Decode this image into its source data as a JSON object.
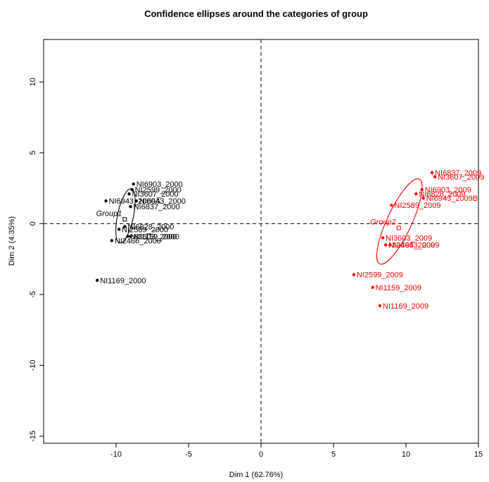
{
  "chart_data": {
    "type": "scatter",
    "title": "Confidence ellipses around the categories of group",
    "xlabel": "Dim 1 (62.76%)",
    "ylabel": "Dim 2 (4.35%)",
    "xlim": [
      -15,
      15
    ],
    "ylim": [
      -15.5,
      13
    ],
    "xticks": [
      -10,
      -5,
      0,
      5,
      10,
      15
    ],
    "yticks": [
      -15,
      -10,
      -5,
      0,
      5,
      10
    ],
    "reference_lines": {
      "x": 0,
      "y": 0,
      "style": "dashed"
    },
    "series": [
      {
        "name": "Group1",
        "color": "#000000",
        "points": [
          {
            "label": "NI6903_2000",
            "x": -8.8,
            "y": 2.8
          },
          {
            "label": "NI2599_2000",
            "x": -8.9,
            "y": 2.4
          },
          {
            "label": "NI3607_2000",
            "x": -9.1,
            "y": 2.1
          },
          {
            "label": "NI6943_2000",
            "x": -8.6,
            "y": 1.6
          },
          {
            "label": "NI6943_2000A",
            "x": -10.7,
            "y": 1.6
          },
          {
            "label": "NI6837_2000",
            "x": -9.0,
            "y": 1.2
          },
          {
            "label": "NI6828_2000",
            "x": -9.4,
            "y": -0.2
          },
          {
            "label": "NI2589_2000",
            "x": -9.8,
            "y": -0.4
          },
          {
            "label": "NI3603_2000",
            "x": -9.2,
            "y": -0.9
          },
          {
            "label": "NI1159_2000",
            "x": -9.0,
            "y": -0.9
          },
          {
            "label": "NI2466_2000",
            "x": -10.3,
            "y": -1.2
          },
          {
            "label": "NI1169_2000",
            "x": -11.3,
            "y": -4.0
          }
        ],
        "centroid": {
          "label": "Group1",
          "x": -9.4,
          "y": 0.3
        },
        "ellipse": {
          "cx": -9.35,
          "cy": 0.55,
          "rx": 0.55,
          "ry": 1.95,
          "angle_deg": 12
        }
      },
      {
        "name": "Group2",
        "color": "#ff0000",
        "points": [
          {
            "label": "NI6837_2009",
            "x": 11.8,
            "y": 3.6
          },
          {
            "label": "NI3607_2009",
            "x": 12.0,
            "y": 3.3
          },
          {
            "label": "NI6903_2009",
            "x": 11.1,
            "y": 2.4
          },
          {
            "label": "NI6828_2009",
            "x": 10.7,
            "y": 2.1
          },
          {
            "label": "NI6943_2009B",
            "x": 11.2,
            "y": 1.8
          },
          {
            "label": "NI2589_2009",
            "x": 9.0,
            "y": 1.3
          },
          {
            "label": "NI3603_2009",
            "x": 8.4,
            "y": -1.0
          },
          {
            "label": "NI6943_2009",
            "x": 8.9,
            "y": -1.5
          },
          {
            "label": "NI2466_2009",
            "x": 8.6,
            "y": -1.5
          },
          {
            "label": "NI2599_2009",
            "x": 6.4,
            "y": -3.6
          },
          {
            "label": "NI1159_2009",
            "x": 7.7,
            "y": -4.5
          },
          {
            "label": "NI1169_2009",
            "x": 8.2,
            "y": -5.8
          }
        ],
        "centroid": {
          "label": "Group2",
          "x": 9.5,
          "y": -0.3
        },
        "ellipse": {
          "cx": 9.55,
          "cy": 0.15,
          "rx": 0.85,
          "ry": 3.3,
          "angle_deg": 25
        }
      }
    ]
  }
}
